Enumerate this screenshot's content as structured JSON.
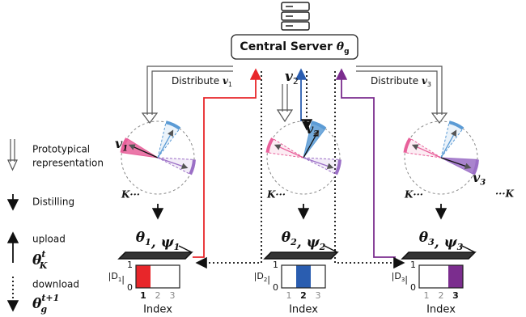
{
  "server": [
    {
      "text": "Central Server "
    },
    {
      "text": "θ",
      "sub": "g"
    }
  ],
  "legend": {
    "prototype": [
      "Prototypical",
      "representation"
    ],
    "distilling": "Distilling",
    "upload": "upload",
    "upload_symbol": [
      {
        "text": "θ",
        "sup": "t",
        "sub": "K"
      }
    ],
    "download": "download",
    "download_symbol": [
      {
        "text": "θ",
        "sup": "t+1",
        "sub": "g"
      }
    ]
  },
  "more_clients": "···K",
  "clients": [
    {
      "distribute": [
        {
          "text": "Distribute "
        },
        {
          "text": "v",
          "sub": "1"
        }
      ],
      "prototype": [
        {
          "text": "v",
          "sub": "1"
        }
      ],
      "k_label": "K···",
      "model": [
        {
          "text": "θ",
          "sub": "1"
        },
        {
          "text": ", ψ",
          "sub": "1"
        }
      ],
      "chart": {
        "ylabel": [
          {
            "text": "|D",
            "sub": "1"
          },
          {
            "text": "|"
          }
        ],
        "yticks": [
          0,
          1
        ],
        "xticks": [
          1,
          2,
          3
        ],
        "values": [
          1,
          0,
          0
        ],
        "color": "#e8262a",
        "xlabel": "Index"
      }
    },
    {
      "distribute": [
        {
          "text": "v",
          "sub": "2"
        }
      ],
      "prototype": [
        {
          "text": "v",
          "sub": "2"
        }
      ],
      "k_label": "K···",
      "model": [
        {
          "text": "θ",
          "sub": "2"
        },
        {
          "text": ", ψ",
          "sub": "2"
        }
      ],
      "chart": {
        "ylabel": [
          {
            "text": "|D",
            "sub": "2"
          },
          {
            "text": "|"
          }
        ],
        "yticks": [
          0,
          1
        ],
        "xticks": [
          1,
          2,
          3
        ],
        "values": [
          0,
          1,
          0
        ],
        "color": "#2a5db0",
        "xlabel": "Index"
      }
    },
    {
      "distribute": [
        {
          "text": "Distribute "
        },
        {
          "text": "v",
          "sub": "3"
        }
      ],
      "prototype": [
        {
          "text": "v",
          "sub": "3"
        }
      ],
      "k_label": "K···",
      "model": [
        {
          "text": "θ",
          "sub": "3"
        },
        {
          "text": ", ψ",
          "sub": "3"
        }
      ],
      "chart": {
        "ylabel": [
          {
            "text": "|D",
            "sub": "3"
          },
          {
            "text": "|"
          }
        ],
        "yticks": [
          0,
          1
        ],
        "xticks": [
          1,
          2,
          3
        ],
        "values": [
          0,
          0,
          1
        ],
        "color": "#7b2d8e",
        "xlabel": "Index"
      }
    }
  ]
}
